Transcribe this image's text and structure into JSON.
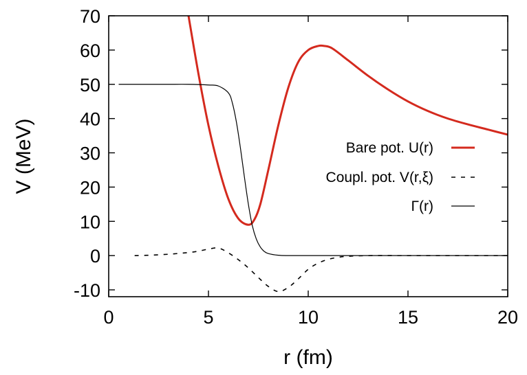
{
  "chart_data": {
    "type": "line",
    "xlabel": "r (fm)",
    "ylabel": "V (MeV)",
    "xlim": [
      0,
      20
    ],
    "ylim": [
      -12,
      70
    ],
    "xticks": [
      0,
      5,
      10,
      15,
      20
    ],
    "xtick_labels": [
      "0",
      "5",
      "10",
      "15",
      "20"
    ],
    "yticks": [
      -10,
      0,
      10,
      20,
      30,
      40,
      50,
      60,
      70
    ],
    "ytick_labels": [
      "-10",
      "0",
      "10",
      "20",
      "30",
      "40",
      "50",
      "60",
      "70"
    ],
    "grid": false,
    "legend_position": "right-middle",
    "series": [
      {
        "name": "Bare pot. U(r)",
        "color": "#d42a1e",
        "style": "solid-thick",
        "x": [
          4.0,
          4.5,
          5.0,
          5.5,
          6.0,
          6.5,
          7.0,
          7.3,
          7.6,
          8.0,
          8.5,
          9.0,
          9.5,
          10.0,
          10.5,
          10.8,
          11.2,
          12.0,
          13.0,
          14.0,
          15.0,
          16.0,
          17.0,
          18.0,
          19.0,
          20.0
        ],
        "y": [
          70,
          53,
          38,
          26,
          16.5,
          10.8,
          9.0,
          10.5,
          15,
          25,
          38,
          49,
          56.5,
          60,
          61.2,
          61.2,
          60.5,
          57,
          52.5,
          48.5,
          45,
          42.2,
          40,
          38.3,
          36.8,
          35.3
        ]
      },
      {
        "name": "Coupl. pot. V(r,ξ)",
        "color": "#000000",
        "style": "dashed",
        "x": [
          1.3,
          2.0,
          3.0,
          4.0,
          4.5,
          5.0,
          5.5,
          6.0,
          6.5,
          7.0,
          7.5,
          8.0,
          8.5,
          9.0,
          9.5,
          10.0,
          10.5,
          11.0,
          11.5,
          12.0,
          13.0,
          15.0,
          17.0,
          20.0
        ],
        "y": [
          0,
          0.1,
          0.4,
          0.9,
          1.3,
          1.9,
          2.2,
          0.8,
          -1.2,
          -3.6,
          -6.4,
          -9.0,
          -10.5,
          -9.3,
          -6.8,
          -4.0,
          -2.2,
          -1.1,
          -0.5,
          -0.2,
          0,
          0,
          0,
          0
        ]
      },
      {
        "name": "Γ(r)",
        "color": "#000000",
        "style": "solid-thin",
        "x": [
          0.5,
          1.0,
          2.0,
          3.0,
          4.0,
          5.0,
          5.5,
          6.0,
          6.2,
          6.4,
          6.6,
          6.8,
          7.0,
          7.2,
          7.4,
          7.6,
          7.8,
          8.0,
          8.5,
          9.0,
          10.0,
          12.0,
          15.0,
          20.0
        ],
        "y": [
          50,
          50,
          50,
          50,
          50,
          49.8,
          49.5,
          47.5,
          44.5,
          39,
          31.5,
          23,
          15,
          8.7,
          4.8,
          2.5,
          1.2,
          0.6,
          0.1,
          0,
          0,
          0,
          0,
          0
        ]
      }
    ]
  }
}
